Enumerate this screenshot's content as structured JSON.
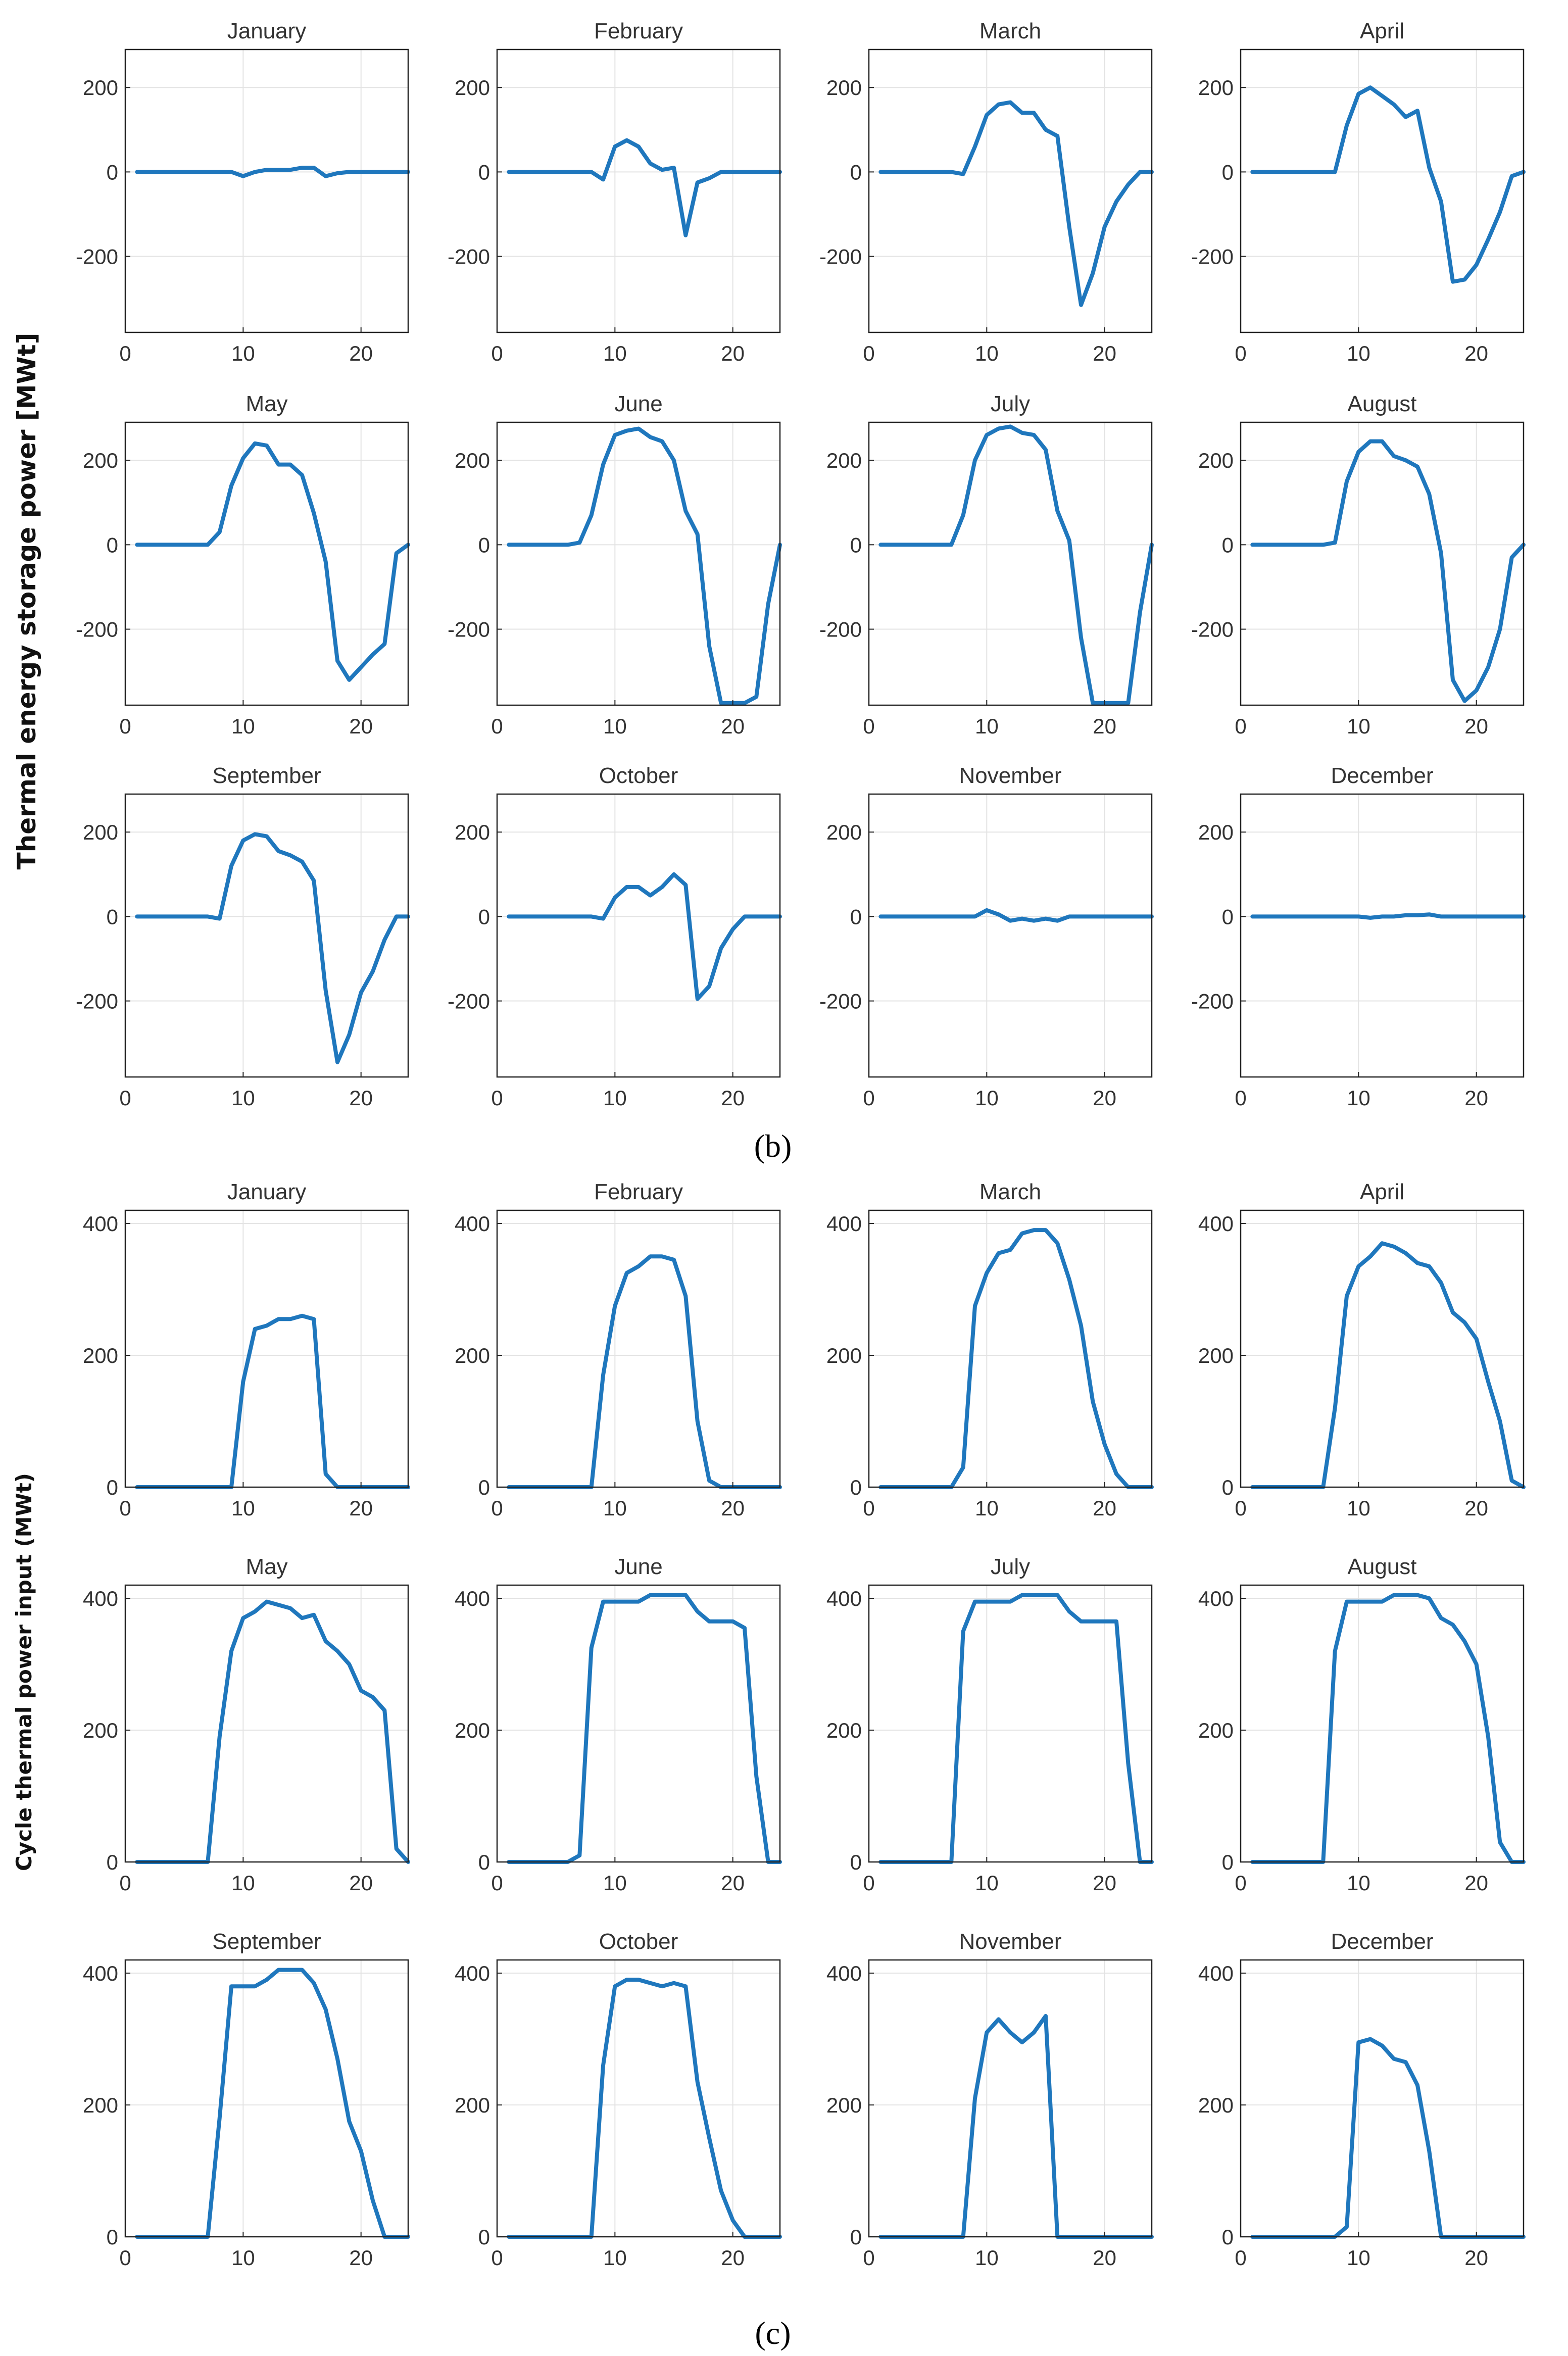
{
  "colors": {
    "line": "#1f77bd",
    "grid": "#e3e3e3",
    "frame": "#222222",
    "text": "#333333"
  },
  "panels": [
    {
      "label": "(b)",
      "label_letter": "b"
    },
    {
      "label": "(c)",
      "label_letter": "c"
    }
  ],
  "chart_data": [
    {
      "type": "line",
      "panel": "b",
      "ylabel": "Thermal energy storage power [MWt]",
      "xlim": [
        0,
        24
      ],
      "ylim": [
        -380,
        290
      ],
      "xticks": [
        0,
        10,
        20
      ],
      "yticks": [
        -200,
        0,
        200
      ],
      "grid": true,
      "x": [
        1,
        2,
        3,
        4,
        5,
        6,
        7,
        8,
        9,
        10,
        11,
        12,
        13,
        14,
        15,
        16,
        17,
        18,
        19,
        20,
        21,
        22,
        23,
        24
      ],
      "series": [
        {
          "name": "January",
          "values": [
            0,
            0,
            0,
            0,
            0,
            0,
            0,
            0,
            0,
            -10,
            0,
            5,
            5,
            5,
            10,
            10,
            -10,
            -3,
            0,
            0,
            0,
            0,
            0,
            0
          ]
        },
        {
          "name": "February",
          "values": [
            0,
            0,
            0,
            0,
            0,
            0,
            0,
            0,
            -18,
            60,
            75,
            60,
            20,
            5,
            10,
            -150,
            -25,
            -15,
            0,
            0,
            0,
            0,
            0,
            0
          ]
        },
        {
          "name": "March",
          "values": [
            0,
            0,
            0,
            0,
            0,
            0,
            0,
            -5,
            60,
            135,
            160,
            165,
            140,
            140,
            100,
            85,
            -130,
            -315,
            -240,
            -130,
            -70,
            -30,
            0,
            0
          ]
        },
        {
          "name": "April",
          "values": [
            0,
            0,
            0,
            0,
            0,
            0,
            0,
            0,
            110,
            185,
            200,
            180,
            160,
            130,
            145,
            10,
            -70,
            -260,
            -255,
            -220,
            -160,
            -95,
            -10,
            0
          ]
        },
        {
          "name": "May",
          "values": [
            0,
            0,
            0,
            0,
            0,
            0,
            0,
            30,
            140,
            205,
            240,
            235,
            190,
            190,
            165,
            75,
            -40,
            -275,
            -320,
            -290,
            -260,
            -235,
            -20,
            0
          ]
        },
        {
          "name": "June",
          "values": [
            0,
            0,
            0,
            0,
            0,
            0,
            5,
            70,
            190,
            260,
            270,
            275,
            255,
            245,
            200,
            80,
            25,
            -240,
            -375,
            -375,
            -375,
            -360,
            -140,
            0
          ]
        },
        {
          "name": "July",
          "values": [
            0,
            0,
            0,
            0,
            0,
            0,
            0,
            70,
            200,
            260,
            275,
            280,
            265,
            260,
            225,
            80,
            10,
            -220,
            -375,
            -375,
            -375,
            -375,
            -160,
            0
          ]
        },
        {
          "name": "August",
          "values": [
            0,
            0,
            0,
            0,
            0,
            0,
            0,
            5,
            150,
            220,
            245,
            245,
            210,
            200,
            185,
            120,
            -20,
            -320,
            -370,
            -345,
            -290,
            -200,
            -30,
            0
          ]
        },
        {
          "name": "September",
          "values": [
            0,
            0,
            0,
            0,
            0,
            0,
            0,
            -5,
            120,
            180,
            195,
            190,
            155,
            145,
            130,
            85,
            -175,
            -345,
            -280,
            -180,
            -130,
            -55,
            0,
            0
          ]
        },
        {
          "name": "October",
          "values": [
            0,
            0,
            0,
            0,
            0,
            0,
            0,
            0,
            -5,
            45,
            70,
            70,
            50,
            70,
            100,
            75,
            -195,
            -165,
            -75,
            -30,
            0,
            0,
            0,
            0
          ]
        },
        {
          "name": "November",
          "values": [
            0,
            0,
            0,
            0,
            0,
            0,
            0,
            0,
            0,
            15,
            5,
            -10,
            -5,
            -10,
            -5,
            -10,
            0,
            0,
            0,
            0,
            0,
            0,
            0,
            0
          ]
        },
        {
          "name": "December",
          "values": [
            0,
            0,
            0,
            0,
            0,
            0,
            0,
            0,
            0,
            0,
            -3,
            0,
            0,
            3,
            3,
            5,
            0,
            0,
            0,
            0,
            0,
            0,
            0,
            0
          ]
        }
      ]
    },
    {
      "type": "line",
      "panel": "c",
      "ylabel": "Cycle thermal power input (MWt)",
      "xlim": [
        0,
        24
      ],
      "ylim": [
        0,
        420
      ],
      "xticks": [
        0,
        10,
        20
      ],
      "yticks": [
        0,
        200,
        400
      ],
      "grid": true,
      "x": [
        1,
        2,
        3,
        4,
        5,
        6,
        7,
        8,
        9,
        10,
        11,
        12,
        13,
        14,
        15,
        16,
        17,
        18,
        19,
        20,
        21,
        22,
        23,
        24
      ],
      "series": [
        {
          "name": "January",
          "values": [
            0,
            0,
            0,
            0,
            0,
            0,
            0,
            0,
            0,
            160,
            240,
            245,
            255,
            255,
            260,
            255,
            20,
            0,
            0,
            0,
            0,
            0,
            0,
            0
          ]
        },
        {
          "name": "February",
          "values": [
            0,
            0,
            0,
            0,
            0,
            0,
            0,
            0,
            170,
            275,
            325,
            335,
            350,
            350,
            345,
            290,
            100,
            10,
            0,
            0,
            0,
            0,
            0,
            0
          ]
        },
        {
          "name": "March",
          "values": [
            0,
            0,
            0,
            0,
            0,
            0,
            0,
            30,
            275,
            325,
            355,
            360,
            385,
            390,
            390,
            370,
            315,
            245,
            130,
            65,
            20,
            0,
            0,
            0
          ]
        },
        {
          "name": "April",
          "values": [
            0,
            0,
            0,
            0,
            0,
            0,
            0,
            120,
            290,
            335,
            350,
            370,
            365,
            355,
            340,
            335,
            310,
            265,
            250,
            225,
            160,
            100,
            10,
            0
          ]
        },
        {
          "name": "May",
          "values": [
            0,
            0,
            0,
            0,
            0,
            0,
            0,
            190,
            320,
            370,
            380,
            395,
            390,
            385,
            370,
            375,
            335,
            320,
            300,
            260,
            250,
            230,
            20,
            0
          ]
        },
        {
          "name": "June",
          "values": [
            0,
            0,
            0,
            0,
            0,
            0,
            10,
            325,
            395,
            395,
            395,
            395,
            405,
            405,
            405,
            405,
            380,
            365,
            365,
            365,
            355,
            130,
            0,
            0
          ]
        },
        {
          "name": "July",
          "values": [
            0,
            0,
            0,
            0,
            0,
            0,
            0,
            350,
            395,
            395,
            395,
            395,
            405,
            405,
            405,
            405,
            380,
            365,
            365,
            365,
            365,
            150,
            0,
            0
          ]
        },
        {
          "name": "August",
          "values": [
            0,
            0,
            0,
            0,
            0,
            0,
            0,
            320,
            395,
            395,
            395,
            395,
            405,
            405,
            405,
            400,
            370,
            360,
            335,
            300,
            190,
            30,
            0,
            0
          ]
        },
        {
          "name": "September",
          "values": [
            0,
            0,
            0,
            0,
            0,
            0,
            0,
            180,
            380,
            380,
            380,
            390,
            405,
            405,
            405,
            385,
            345,
            270,
            175,
            130,
            55,
            0,
            0,
            0
          ]
        },
        {
          "name": "October",
          "values": [
            0,
            0,
            0,
            0,
            0,
            0,
            0,
            0,
            260,
            380,
            390,
            390,
            385,
            380,
            385,
            380,
            235,
            150,
            70,
            25,
            0,
            0,
            0,
            0
          ]
        },
        {
          "name": "November",
          "values": [
            0,
            0,
            0,
            0,
            0,
            0,
            0,
            0,
            210,
            310,
            330,
            310,
            295,
            310,
            335,
            0,
            0,
            0,
            0,
            0,
            0,
            0,
            0,
            0
          ]
        },
        {
          "name": "December",
          "values": [
            0,
            0,
            0,
            0,
            0,
            0,
            0,
            0,
            15,
            295,
            300,
            290,
            270,
            265,
            230,
            130,
            0,
            0,
            0,
            0,
            0,
            0,
            0,
            0
          ]
        }
      ]
    }
  ]
}
